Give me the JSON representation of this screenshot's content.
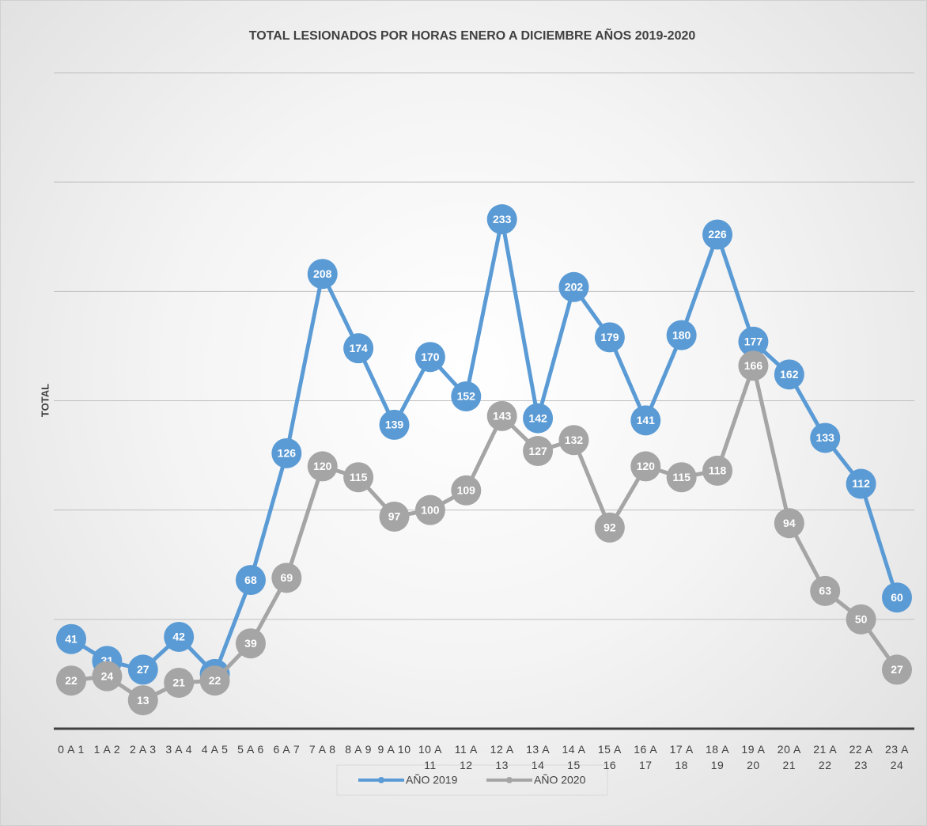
{
  "chart_data": {
    "type": "line",
    "title": "TOTAL LESIONADOS  POR HORAS ENERO A DICIEMBRE AÑOS 2019-2020",
    "y_label": "TOTAL",
    "categories": [
      "0 A 1",
      "1 A 2",
      "2 A 3",
      "3 A 4",
      "4 A 5",
      "5 A 6",
      "6 A 7",
      "7 A 8",
      "8 A 9",
      "9 A 10",
      "10 A 11",
      "11 A 12",
      "12 A 13",
      "13 A 14",
      "14 A 15",
      "15 A 16",
      "16 A 17",
      "17 A 18",
      "18 A 19",
      "19 A 20",
      "20 A 21",
      "21 A 22",
      "22 A 23",
      "23 A 24"
    ],
    "series": [
      {
        "name": "AÑO 2019",
        "color": "#5b9bd5",
        "values": [
          41,
          31,
          27,
          42,
          25,
          68,
          126,
          208,
          174,
          139,
          170,
          152,
          233,
          142,
          202,
          179,
          141,
          180,
          226,
          177,
          162,
          133,
          112,
          60
        ]
      },
      {
        "name": "AÑO 2020",
        "color": "#a5a5a5",
        "values": [
          22,
          24,
          13,
          21,
          22,
          39,
          69,
          120,
          115,
          97,
          100,
          109,
          143,
          127,
          132,
          92,
          120,
          115,
          118,
          166,
          94,
          63,
          50,
          27
        ]
      }
    ],
    "ylim": [
      0,
      300
    ],
    "yticks": [
      0,
      50,
      100,
      150,
      200,
      250,
      300
    ],
    "grid": true,
    "legend": "bottom"
  }
}
